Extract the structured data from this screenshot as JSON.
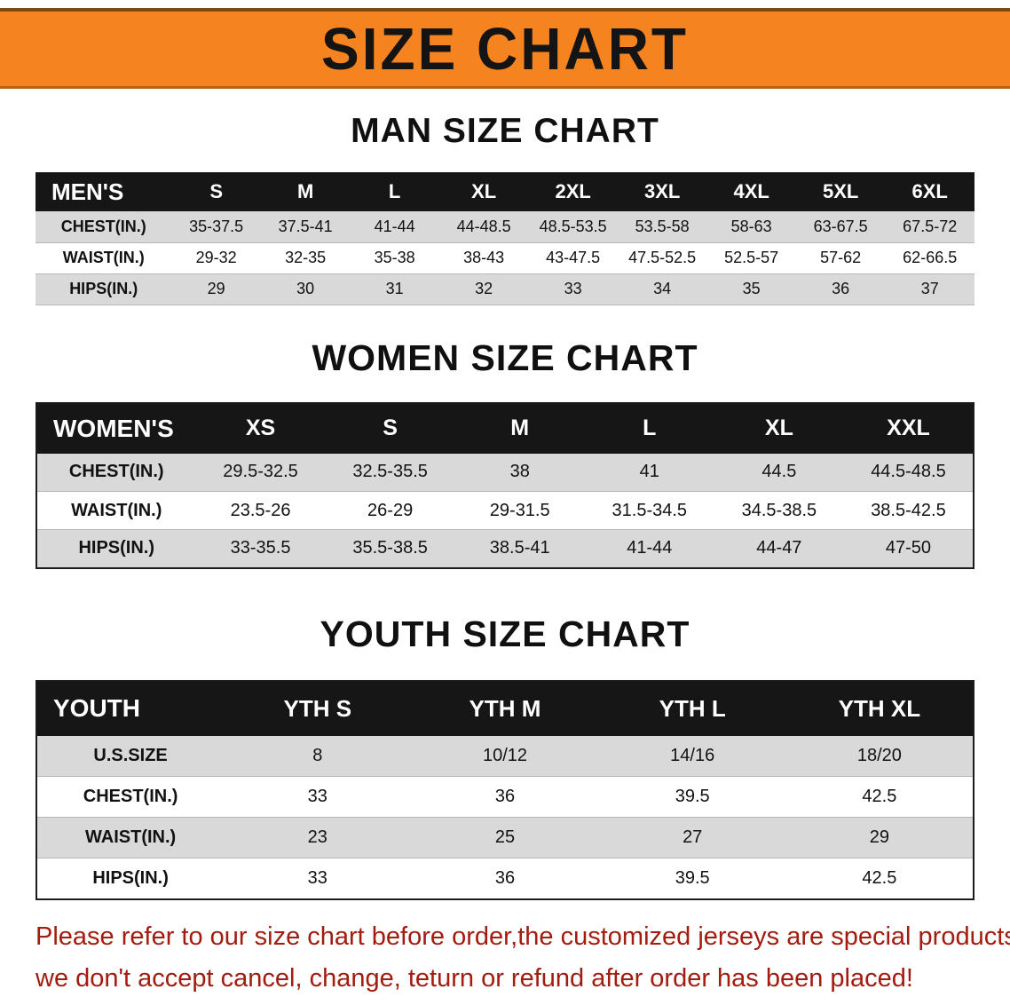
{
  "banner": {
    "title": "SIZE CHART"
  },
  "colors": {
    "banner_bg": "#f5831f",
    "header_bg": "#161616",
    "header_text": "#ffffff",
    "stripe": "#d9d9d9",
    "heading_text": "#101010",
    "disclaimer_text": "#a21c0f"
  },
  "sections": [
    {
      "id": "men",
      "heading": "MAN SIZE CHART",
      "columns": [
        "MEN'S",
        "S",
        "M",
        "L",
        "XL",
        "2XL",
        "3XL",
        "4XL",
        "5XL",
        "6XL"
      ],
      "rows": [
        {
          "label": "CHEST(IN.)",
          "values": [
            "35-37.5",
            "37.5-41",
            "41-44",
            "44-48.5",
            "48.5-53.5",
            "53.5-58",
            "58-63",
            "63-67.5",
            "67.5-72"
          ]
        },
        {
          "label": "WAIST(IN.)",
          "values": [
            "29-32",
            "32-35",
            "35-38",
            "38-43",
            "43-47.5",
            "47.5-52.5",
            "52.5-57",
            "57-62",
            "62-66.5"
          ]
        },
        {
          "label": "HIPS(IN.)",
          "values": [
            "29",
            "30",
            "31",
            "32",
            "33",
            "34",
            "35",
            "36",
            "37"
          ]
        }
      ]
    },
    {
      "id": "women",
      "heading": "WOMEN SIZE CHART",
      "columns": [
        "WOMEN'S",
        "XS",
        "S",
        "M",
        "L",
        "XL",
        "XXL"
      ],
      "rows": [
        {
          "label": "CHEST(IN.)",
          "values": [
            "29.5-32.5",
            "32.5-35.5",
            "38",
            "41",
            "44.5",
            "44.5-48.5"
          ]
        },
        {
          "label": "WAIST(IN.)",
          "values": [
            "23.5-26",
            "26-29",
            "29-31.5",
            "31.5-34.5",
            "34.5-38.5",
            "38.5-42.5"
          ]
        },
        {
          "label": "HIPS(IN.)",
          "values": [
            "33-35.5",
            "35.5-38.5",
            "38.5-41",
            "41-44",
            "44-47",
            "47-50"
          ]
        }
      ]
    },
    {
      "id": "youth",
      "heading": "YOUTH SIZE CHART",
      "columns": [
        "YOUTH",
        "YTH S",
        "YTH M",
        "YTH L",
        "YTH XL"
      ],
      "rows": [
        {
          "label": "U.S.SIZE",
          "values": [
            "8",
            "10/12",
            "14/16",
            "18/20"
          ]
        },
        {
          "label": "CHEST(IN.)",
          "values": [
            "33",
            "36",
            "39.5",
            "42.5"
          ]
        },
        {
          "label": "WAIST(IN.)",
          "values": [
            "23",
            "25",
            "27",
            "29"
          ]
        },
        {
          "label": "HIPS(IN.)",
          "values": [
            "33",
            "36",
            "39.5",
            "42.5"
          ]
        }
      ]
    }
  ],
  "disclaimer": {
    "lines": [
      "Please refer to our size chart before order,the customized jerseys are special products,",
      "we don't accept cancel, change, teturn or refund after order has been placed!"
    ]
  }
}
